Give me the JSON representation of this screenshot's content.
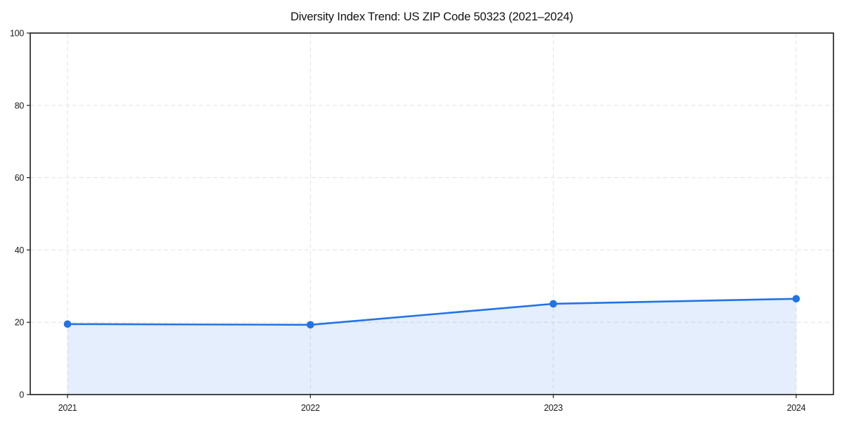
{
  "page": {
    "background": "#ffffff"
  },
  "chart_data": {
    "type": "area",
    "title": "Diversity Index Trend: US ZIP Code 50323 (2021–2024)",
    "x": [
      2021,
      2022,
      2023,
      2024
    ],
    "xticks": [
      "2021",
      "2022",
      "2023",
      "2024"
    ],
    "series": [
      {
        "name": "Diversity Index",
        "values": [
          19.5,
          19.3,
          25.1,
          26.5
        ]
      }
    ],
    "xlabel": "",
    "ylabel": "",
    "ylim": [
      0,
      100
    ],
    "yticks": [
      0,
      20,
      40,
      60,
      80,
      100
    ],
    "grid": "dashed",
    "legend_position": "none",
    "line_color": "#2273e6",
    "fill_color": "#2273e6",
    "fill_opacity": 0.12,
    "grid_color": "#e2e2e2",
    "axis_color": "#1a1a1a",
    "marker": "circle"
  }
}
